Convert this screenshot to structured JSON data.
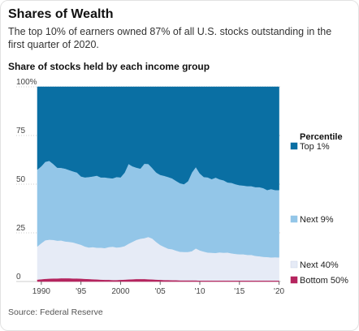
{
  "header": {
    "title": "Shares of Wealth",
    "subtitle": "The top 10% of earners owned 87% of all U.S. stocks outstanding in the first quarter of 2020."
  },
  "footer": {
    "source": "Source: Federal Reserve"
  },
  "chart_data": {
    "type": "area",
    "stacked": true,
    "title": "Share of stocks held by each income group",
    "xlabel": "",
    "ylabel": "",
    "x": [
      1989.5,
      1990,
      1990.5,
      1991,
      1991.5,
      1992,
      1992.5,
      1993,
      1993.5,
      1994,
      1994.5,
      1995,
      1995.5,
      1996,
      1996.5,
      1997,
      1997.5,
      1998,
      1998.5,
      1999,
      1999.5,
      2000,
      2000.5,
      2001,
      2001.5,
      2002,
      2002.5,
      2003,
      2003.5,
      2004,
      2004.5,
      2005,
      2005.5,
      2006,
      2006.5,
      2007,
      2007.5,
      2008,
      2008.5,
      2009,
      2009.5,
      2010,
      2010.5,
      2011,
      2011.5,
      2012,
      2012.5,
      2013,
      2013.5,
      2014,
      2014.5,
      2015,
      2015.5,
      2016,
      2016.5,
      2017,
      2017.5,
      2018,
      2018.5,
      2019,
      2019.5,
      2020
    ],
    "xlim": [
      1989.5,
      2020.25
    ],
    "ylim": [
      0,
      100
    ],
    "y_ticks": [
      0,
      25,
      50,
      75,
      100
    ],
    "y_tick_labels": [
      "0",
      "25",
      "50",
      "75",
      "100%"
    ],
    "x_ticks": [
      1990,
      1995,
      2000,
      2005,
      2010,
      2015,
      2020
    ],
    "x_tick_labels": [
      "1990",
      "'95",
      "2000",
      "'05",
      "'10",
      "'15",
      "'20"
    ],
    "legend_position": "right",
    "legend_heading": "Percentile",
    "series": [
      {
        "name": "Bottom 50%",
        "color": "#b5255f",
        "values": [
          1.0,
          1.2,
          1.4,
          1.5,
          1.6,
          1.6,
          1.7,
          1.7,
          1.7,
          1.6,
          1.6,
          1.5,
          1.4,
          1.3,
          1.2,
          1.1,
          1.0,
          0.9,
          0.9,
          0.8,
          0.8,
          0.9,
          1.0,
          1.1,
          1.2,
          1.3,
          1.3,
          1.3,
          1.2,
          1.1,
          1.0,
          0.9,
          0.8,
          0.8,
          0.7,
          0.7,
          0.6,
          0.6,
          0.6,
          0.6,
          0.6,
          0.5,
          0.5,
          0.5,
          0.5,
          0.5,
          0.5,
          0.5,
          0.5,
          0.5,
          0.5,
          0.5,
          0.5,
          0.5,
          0.5,
          0.5,
          0.5,
          0.5,
          0.5,
          0.5,
          0.5,
          0.5
        ]
      },
      {
        "name": "Next 40%",
        "color": "#e6ebf6",
        "values": [
          17.0,
          18.5,
          19.8,
          20.0,
          19.8,
          19.4,
          19.4,
          18.9,
          18.7,
          18.5,
          17.9,
          17.4,
          16.6,
          16.2,
          16.5,
          16.3,
          16.4,
          16.3,
          16.8,
          17.1,
          16.7,
          16.8,
          17.2,
          18.3,
          19.2,
          20.1,
          20.7,
          21.0,
          21.7,
          21.0,
          19.3,
          17.9,
          17.0,
          16.1,
          15.9,
          15.2,
          14.7,
          14.6,
          14.6,
          15.0,
          16.4,
          15.5,
          14.9,
          14.4,
          14.3,
          14.2,
          14.5,
          14.3,
          14.4,
          14.0,
          13.7,
          13.5,
          13.5,
          13.2,
          13.2,
          12.7,
          12.5,
          12.2,
          12.1,
          11.9,
          12.0,
          11.9
        ]
      },
      {
        "name": "Next 9%",
        "color": "#93c6e8",
        "values": [
          39.5,
          39.5,
          40.3,
          40.5,
          39.0,
          37.5,
          37.3,
          37.4,
          36.9,
          36.5,
          36.5,
          35.1,
          35.5,
          36.2,
          36.3,
          37.0,
          36.1,
          36.3,
          35.5,
          35.1,
          36.2,
          35.8,
          37.7,
          41.0,
          38.8,
          37.1,
          36.0,
          38.2,
          37.5,
          36.2,
          35.7,
          36.0,
          36.5,
          36.8,
          36.4,
          35.8,
          35.2,
          34.8,
          36.3,
          40.4,
          41.8,
          39.5,
          38.3,
          38.6,
          37.8,
          38.7,
          37.5,
          37.2,
          36.0,
          36.2,
          35.8,
          35.5,
          35.3,
          35.3,
          35.3,
          35.3,
          35.5,
          35.3,
          34.4,
          35.1,
          34.5,
          34.6
        ]
      },
      {
        "name": "Top 1%",
        "color": "#0a6fa3",
        "values": [
          42.5,
          40.8,
          38.5,
          38.0,
          39.6,
          41.5,
          41.6,
          42.0,
          42.7,
          43.4,
          44.0,
          46.0,
          46.5,
          46.3,
          46.0,
          45.6,
          46.5,
          46.5,
          46.8,
          47.0,
          46.3,
          46.5,
          44.1,
          39.6,
          40.8,
          41.5,
          42.0,
          39.5,
          39.6,
          41.7,
          44.0,
          45.2,
          45.7,
          46.3,
          47.0,
          48.3,
          49.5,
          50.0,
          48.5,
          44.0,
          41.2,
          44.5,
          46.3,
          46.5,
          47.4,
          46.6,
          47.5,
          48.0,
          49.1,
          49.3,
          50.0,
          50.5,
          50.7,
          51.0,
          51.0,
          51.5,
          51.5,
          52.0,
          53.0,
          52.5,
          53.0,
          53.0
        ]
      }
    ]
  }
}
